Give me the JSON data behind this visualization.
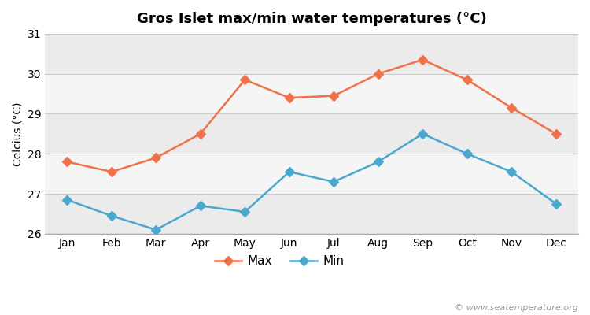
{
  "title": "Gros Islet max/min water temperatures (°C)",
  "ylabel": "Celcius (°C)",
  "watermark": "© www.seatemperature.org",
  "months": [
    "Jan",
    "Feb",
    "Mar",
    "Apr",
    "May",
    "Jun",
    "Jul",
    "Aug",
    "Sep",
    "Oct",
    "Nov",
    "Dec"
  ],
  "max_values": [
    27.8,
    27.55,
    27.9,
    28.5,
    29.85,
    29.4,
    29.45,
    30.0,
    30.35,
    29.85,
    29.15,
    28.5
  ],
  "min_values": [
    26.85,
    26.45,
    26.1,
    26.7,
    26.55,
    27.55,
    27.3,
    27.8,
    28.5,
    28.0,
    27.55,
    26.75
  ],
  "ylim": [
    26.0,
    31.0
  ],
  "yticks": [
    26,
    27,
    28,
    29,
    30,
    31
  ],
  "max_color": "#f07248",
  "min_color": "#4aa8d0",
  "bg_color": "#ffffff",
  "band_colors": [
    "#ebebeb",
    "#f5f5f5"
  ],
  "grid_line_color": "#cccccc",
  "marker": "D",
  "marker_size": 6,
  "linewidth": 1.8,
  "title_fontsize": 13,
  "label_fontsize": 10,
  "tick_fontsize": 10,
  "legend_fontsize": 11
}
